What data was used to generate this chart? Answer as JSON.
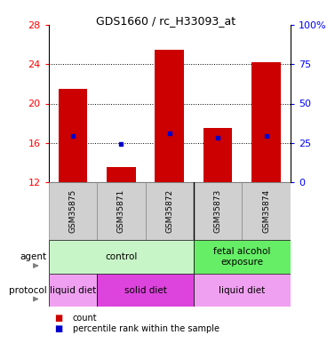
{
  "title": "GDS1660 / rc_H33093_at",
  "samples": [
    "GSM35875",
    "GSM35871",
    "GSM35872",
    "GSM35873",
    "GSM35874"
  ],
  "bar_bottoms": [
    12,
    12,
    12,
    12,
    12
  ],
  "bar_tops": [
    21.5,
    13.5,
    25.5,
    17.5,
    24.2
  ],
  "blue_dot_y": [
    16.7,
    15.9,
    17.0,
    16.5,
    16.7
  ],
  "ylim": [
    12,
    28
  ],
  "yticks_left": [
    12,
    16,
    20,
    24,
    28
  ],
  "yticks_right": [
    0,
    25,
    50,
    75,
    100
  ],
  "ytick_right_labels": [
    "0",
    "25",
    "50",
    "75",
    "100%"
  ],
  "bar_color": "#cc0000",
  "dot_color": "#0000cc",
  "agent_groups": [
    {
      "label": "control",
      "span": [
        0,
        3
      ],
      "color": "#c8f5c8"
    },
    {
      "label": "fetal alcohol\nexposure",
      "span": [
        3,
        5
      ],
      "color": "#66ee66"
    }
  ],
  "protocol_groups": [
    {
      "label": "liquid diet",
      "span": [
        0,
        1
      ],
      "color": "#f0a0f0"
    },
    {
      "label": "solid diet",
      "span": [
        1,
        3
      ],
      "color": "#dd44dd"
    },
    {
      "label": "liquid diet",
      "span": [
        3,
        5
      ],
      "color": "#f0a0f0"
    }
  ],
  "left_label_agent": "agent",
  "left_label_protocol": "protocol",
  "legend_count_color": "#cc0000",
  "legend_dot_color": "#0000cc",
  "legend_count_label": "count",
  "legend_dot_label": "percentile rank within the sample",
  "sample_box_color": "#d0d0d0",
  "sample_box_edge": "#888888"
}
